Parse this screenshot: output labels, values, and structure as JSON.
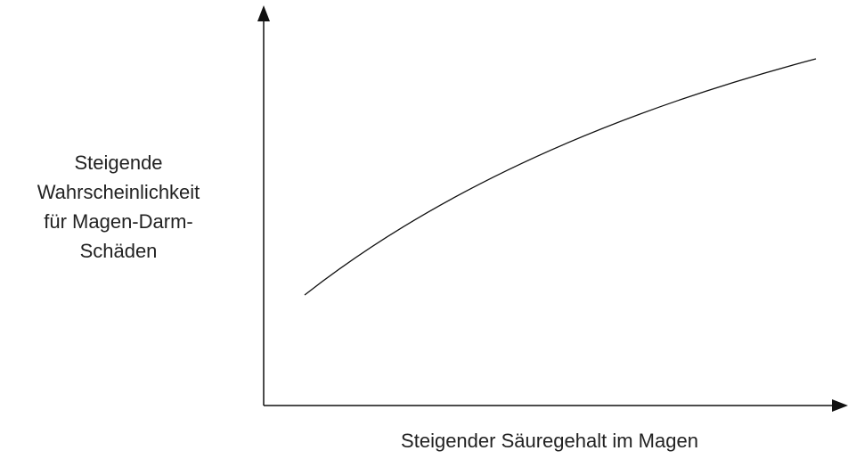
{
  "y_axis_label": {
    "lines": [
      "Steigende",
      "Wahrscheinlichkeit",
      "für Magen-Darm-",
      "Schäden"
    ]
  },
  "x_axis_label": "Steigender Säuregehalt im Magen"
}
